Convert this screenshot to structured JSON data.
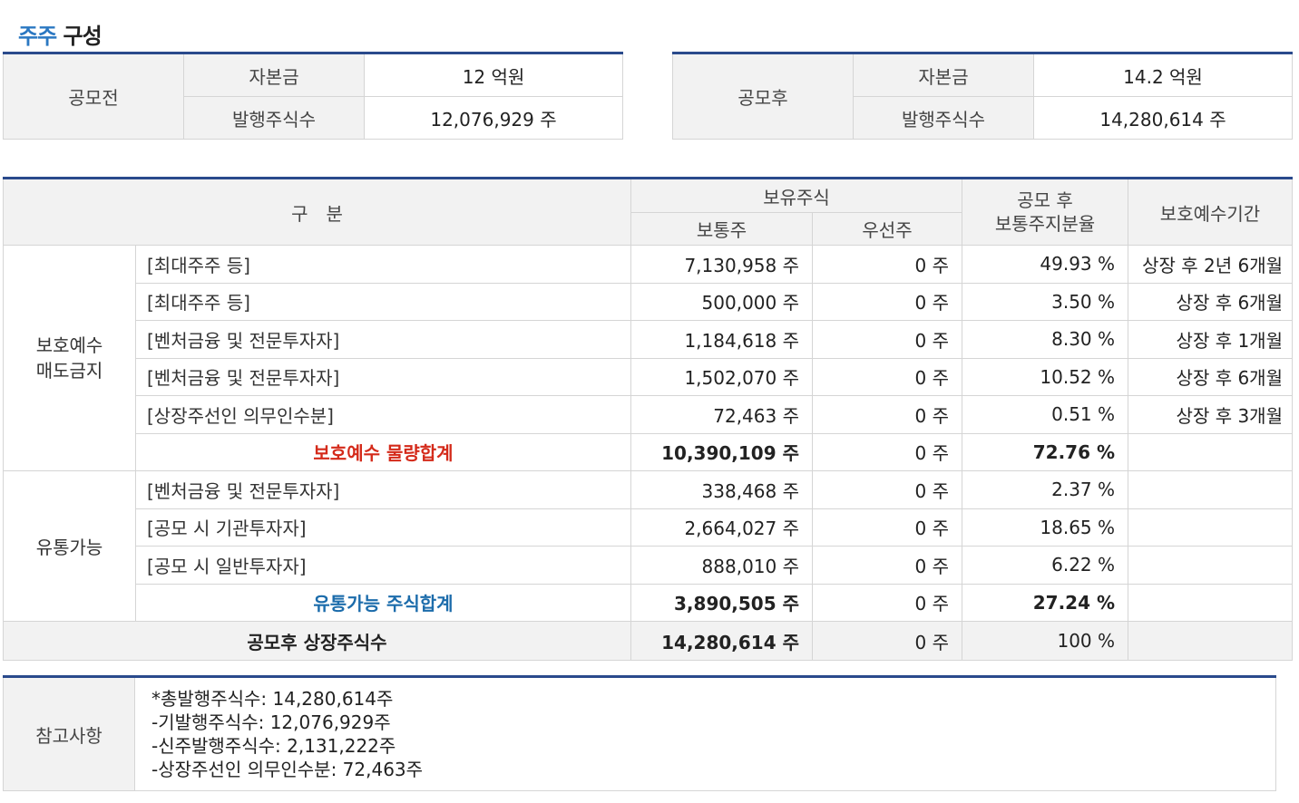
{
  "title": {
    "accent": "주주",
    "rest": "구성"
  },
  "capital": {
    "before": {
      "label": "공모전",
      "capital_label": "자본금",
      "capital_value": "12 억원",
      "shares_label": "발행주식수",
      "shares_value": "12,076,929 주"
    },
    "after": {
      "label": "공모후",
      "capital_label": "자본금",
      "capital_value": "14.2 억원",
      "shares_label": "발행주식수",
      "shares_value": "14,280,614 주"
    }
  },
  "table": {
    "headers": {
      "category": "구　분",
      "holdings": "보유주식",
      "common": "보통주",
      "preferred": "우선주",
      "ratio_line1": "공모 후",
      "ratio_line2": "보통주지분율",
      "lockup": "보호예수기간"
    },
    "lock_group": {
      "label_line1": "보호예수",
      "label_line2": "매도금지",
      "rows": [
        {
          "name": "[최대주주 등]",
          "common": "7,130,958 주",
          "preferred": "0 주",
          "ratio": "49.93 %",
          "period": "상장 후 2년 6개월"
        },
        {
          "name": "[최대주주 등]",
          "common": "500,000 주",
          "preferred": "0 주",
          "ratio": "3.50 %",
          "period": "상장 후 6개월"
        },
        {
          "name": "[벤처금융 및 전문투자자]",
          "common": "1,184,618 주",
          "preferred": "0 주",
          "ratio": "8.30 %",
          "period": "상장 후 1개월"
        },
        {
          "name": "[벤처금융 및 전문투자자]",
          "common": "1,502,070 주",
          "preferred": "0 주",
          "ratio": "10.52 %",
          "period": "상장 후 6개월"
        },
        {
          "name": "[상장주선인 의무인수분]",
          "common": "72,463 주",
          "preferred": "0 주",
          "ratio": "0.51 %",
          "period": "상장 후 3개월"
        }
      ],
      "subtotal": {
        "label": "보호예수 물량합계",
        "common": "10,390,109 주",
        "preferred": "0 주",
        "ratio": "72.76 %"
      }
    },
    "float_group": {
      "label": "유통가능",
      "rows": [
        {
          "name": "[벤처금융 및 전문투자자]",
          "common": "338,468 주",
          "preferred": "0 주",
          "ratio": "2.37 %"
        },
        {
          "name": "[공모 시 기관투자자]",
          "common": "2,664,027 주",
          "preferred": "0 주",
          "ratio": "18.65 %"
        },
        {
          "name": "[공모 시 일반투자자]",
          "common": "888,010 주",
          "preferred": "0 주",
          "ratio": "6.22 %"
        }
      ],
      "subtotal": {
        "label": "유통가능 주식합계",
        "common": "3,890,505 주",
        "preferred": "0 주",
        "ratio": "27.24 %"
      }
    },
    "total": {
      "label": "공모후 상장주식수",
      "common": "14,280,614 주",
      "preferred": "0 주",
      "ratio": "100 %"
    }
  },
  "notes": {
    "label": "참고사항",
    "lines": [
      "*총발행주식수: 14,280,614주",
      "-기발행주식수: 12,076,929주",
      "-신주발행주식수: 2,131,222주",
      "-상장주선인 의무인수분: 72,463주"
    ]
  }
}
